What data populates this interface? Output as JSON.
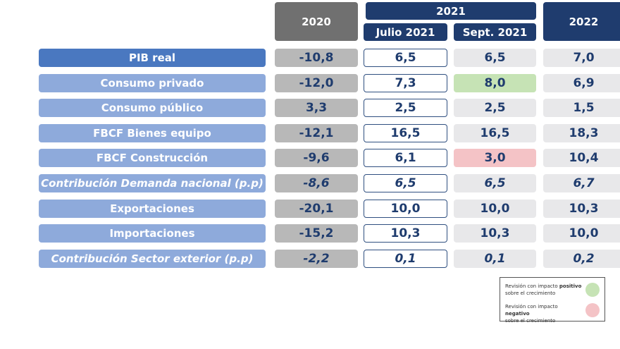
{
  "header": {
    "y2020": "2020",
    "y2021": "2021",
    "julio": "Julio 2021",
    "sept": "Sept. 2021",
    "y2022": "2022"
  },
  "table": {
    "rows": [
      {
        "label": "PIB real",
        "italic": false,
        "values": [
          "-10,8",
          "6,5",
          "6,5",
          "7,0"
        ]
      },
      {
        "label": "Consumo privado",
        "italic": false,
        "values": [
          "-12,0",
          "7,3",
          "8,0",
          "6,9"
        ],
        "sept_color": "#c6e3b5"
      },
      {
        "label": "Consumo público",
        "italic": false,
        "values": [
          "3,3",
          "2,5",
          "2,5",
          "1,5"
        ]
      },
      {
        "label": "FBCF Bienes equipo",
        "italic": false,
        "values": [
          "-12,1",
          "16,5",
          "16,5",
          "18,3"
        ]
      },
      {
        "label": "FBCF Construcción",
        "italic": false,
        "values": [
          "-9,6",
          "6,1",
          "3,0",
          "10,4"
        ],
        "sept_color": "#f4c3c6"
      },
      {
        "label": "Contribución Demanda nacional (p.p)",
        "italic": true,
        "values": [
          "-8,6",
          "6,5",
          "6,5",
          "6,7"
        ]
      },
      {
        "label": "Exportaciones",
        "italic": false,
        "values": [
          "-20,1",
          "10,0",
          "10,0",
          "10,3"
        ]
      },
      {
        "label": "Importaciones",
        "italic": false,
        "values": [
          "-15,2",
          "10,3",
          "10,3",
          "10,0"
        ]
      },
      {
        "label": "Contribución Sector exterior (p.p)",
        "italic": true,
        "values": [
          "-2,2",
          "0,1",
          "0,1",
          "0,2"
        ]
      }
    ]
  },
  "legend": [
    {
      "pre": "Revisión con impacto ",
      "bold": "positivo",
      "post": "sobre el crecimiento",
      "color": "#c6e3b5"
    },
    {
      "pre": "Revisión con impacto ",
      "bold": "negativo",
      "post": "sobre el crecimiento",
      "color": "#f4c3c6"
    }
  ]
}
